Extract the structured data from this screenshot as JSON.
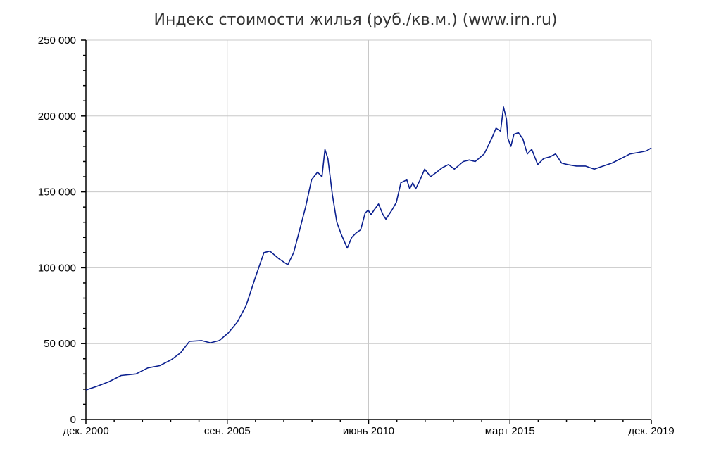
{
  "chart_data": {
    "type": "line",
    "title": "Индекс стоимости жилья (руб./кв.м.) (www.irn.ru)",
    "xlabel": "",
    "ylabel": "",
    "ylim": [
      0,
      250000
    ],
    "yticks": [
      0,
      50000,
      100000,
      150000,
      200000,
      250000
    ],
    "ytick_labels": [
      "0",
      "50 000",
      "100 000",
      "150 000",
      "200 000",
      "250 000"
    ],
    "xlim": [
      2000.917,
      2019.917
    ],
    "xticks": [
      2000.917,
      2005.667,
      2010.417,
      2015.167,
      2019.917
    ],
    "xtick_labels": [
      "дек. 2000",
      "сен. 2005",
      "июнь 2010",
      "март 2015",
      "дек. 2019"
    ],
    "grid": true,
    "line_color": "#0a1f8f",
    "series": [
      {
        "x": [
          2000.92,
          2001.3,
          2001.7,
          2002.1,
          2002.6,
          2003.0,
          2003.4,
          2003.8,
          2004.1,
          2004.4,
          2004.8,
          2005.1,
          2005.4,
          2005.7,
          2006.0,
          2006.3,
          2006.6,
          2006.9,
          2007.1,
          2007.4,
          2007.7,
          2007.9,
          2008.1,
          2008.3,
          2008.5,
          2008.7,
          2008.85,
          2008.95,
          2009.05,
          2009.2,
          2009.35,
          2009.5,
          2009.7,
          2009.85,
          2010.0,
          2010.15,
          2010.3,
          2010.4,
          2010.5,
          2010.6,
          2010.75,
          2010.9,
          2011.0,
          2011.2,
          2011.35,
          2011.5,
          2011.7,
          2011.8,
          2011.9,
          2012.0,
          2012.15,
          2012.3,
          2012.5,
          2012.7,
          2012.9,
          2013.1,
          2013.3,
          2013.6,
          2013.8,
          2014.0,
          2014.3,
          2014.55,
          2014.7,
          2014.85,
          2014.95,
          2015.05,
          2015.1,
          2015.2,
          2015.3,
          2015.45,
          2015.6,
          2015.75,
          2015.9,
          2016.1,
          2016.3,
          2016.5,
          2016.7,
          2016.9,
          2017.1,
          2017.4,
          2017.7,
          2018.0,
          2018.3,
          2018.6,
          2018.9,
          2019.2,
          2019.5,
          2019.75,
          2019.92
        ],
        "y": [
          19500,
          22000,
          25000,
          29000,
          30000,
          34000,
          35500,
          39500,
          44000,
          51500,
          52000,
          50500,
          52000,
          57000,
          64000,
          75000,
          93000,
          110000,
          111000,
          106000,
          102000,
          110000,
          125000,
          140000,
          158000,
          163000,
          160000,
          178000,
          172000,
          148000,
          130000,
          122000,
          113000,
          120000,
          123000,
          125000,
          136000,
          138000,
          135000,
          138000,
          142000,
          135000,
          132000,
          138000,
          143000,
          156000,
          158000,
          152000,
          156000,
          152000,
          158000,
          165000,
          160000,
          163000,
          166000,
          168000,
          165000,
          170000,
          171000,
          170000,
          175000,
          185000,
          192000,
          190000,
          206000,
          198000,
          185000,
          180000,
          188000,
          189000,
          185000,
          175000,
          178000,
          168000,
          172000,
          173000,
          175000,
          169000,
          168000,
          167000,
          167000,
          165000,
          167000,
          169000,
          172000,
          175000,
          176000,
          177000,
          179000
        ]
      }
    ]
  }
}
